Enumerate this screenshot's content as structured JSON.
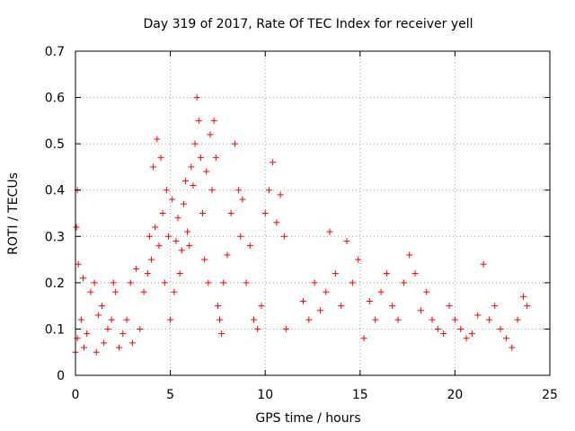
{
  "chart_data": {
    "type": "scatter",
    "title": "Day 319 of 2017, Rate Of TEC Index for receiver yell",
    "xlabel": "GPS time / hours",
    "ylabel": "ROTI / TECUs",
    "xlim": [
      0,
      25
    ],
    "ylim": [
      0,
      0.7
    ],
    "x_ticks": [
      0,
      5,
      10,
      15,
      20,
      25
    ],
    "y_ticks": [
      0,
      0.1,
      0.2,
      0.3,
      0.4,
      0.5,
      0.6,
      0.7
    ],
    "grid": true,
    "marker": "+",
    "marker_color": "#ff0000",
    "series": [
      {
        "x": [
          0.0,
          0.05,
          0.1,
          0.1,
          0.15,
          0.3,
          0.4,
          0.45,
          0.6,
          0.8,
          1.0,
          1.1,
          1.2,
          1.4,
          1.5,
          1.7,
          1.9,
          2.0,
          2.1,
          2.3,
          2.5,
          2.7,
          2.9,
          3.0,
          3.2,
          3.4,
          3.6,
          3.8,
          3.9,
          4.0,
          4.1,
          4.2,
          4.3,
          4.4,
          4.5,
          4.6,
          4.7,
          4.8,
          4.9,
          5.0,
          5.1,
          5.2,
          5.3,
          5.4,
          5.5,
          5.6,
          5.7,
          5.8,
          5.9,
          6.0,
          6.1,
          6.2,
          6.3,
          6.4,
          6.5,
          6.6,
          6.7,
          6.8,
          6.9,
          7.0,
          7.1,
          7.2,
          7.3,
          7.4,
          7.5,
          7.6,
          7.7,
          7.8,
          8.0,
          8.2,
          8.4,
          8.6,
          8.7,
          8.8,
          9.0,
          9.2,
          9.4,
          9.6,
          9.8,
          10.0,
          10.2,
          10.4,
          10.6,
          10.8,
          11.0,
          11.1,
          12.0,
          12.3,
          12.6,
          12.9,
          13.2,
          13.4,
          13.7,
          14.0,
          14.3,
          14.6,
          14.9,
          15.2,
          15.5,
          15.8,
          16.1,
          16.4,
          16.7,
          17.0,
          17.3,
          17.6,
          17.9,
          18.2,
          18.5,
          18.8,
          19.1,
          19.4,
          19.7,
          20.0,
          20.3,
          20.6,
          20.9,
          21.2,
          21.5,
          21.8,
          22.1,
          22.4,
          22.7,
          23.0,
          23.3,
          23.6,
          23.8
        ],
        "y": [
          0.05,
          0.32,
          0.4,
          0.08,
          0.24,
          0.12,
          0.21,
          0.06,
          0.09,
          0.18,
          0.2,
          0.05,
          0.13,
          0.15,
          0.07,
          0.1,
          0.12,
          0.2,
          0.18,
          0.06,
          0.09,
          0.12,
          0.2,
          0.07,
          0.23,
          0.1,
          0.18,
          0.22,
          0.3,
          0.25,
          0.45,
          0.32,
          0.51,
          0.28,
          0.47,
          0.35,
          0.2,
          0.4,
          0.3,
          0.12,
          0.38,
          0.18,
          0.29,
          0.34,
          0.22,
          0.27,
          0.37,
          0.42,
          0.31,
          0.28,
          0.45,
          0.41,
          0.5,
          0.6,
          0.55,
          0.47,
          0.35,
          0.25,
          0.44,
          0.2,
          0.52,
          0.4,
          0.55,
          0.47,
          0.15,
          0.12,
          0.09,
          0.2,
          0.26,
          0.35,
          0.5,
          0.4,
          0.3,
          0.38,
          0.2,
          0.28,
          0.12,
          0.1,
          0.15,
          0.35,
          0.4,
          0.46,
          0.33,
          0.39,
          0.3,
          0.1,
          0.16,
          0.12,
          0.2,
          0.14,
          0.18,
          0.31,
          0.22,
          0.15,
          0.29,
          0.2,
          0.25,
          0.08,
          0.16,
          0.12,
          0.18,
          0.22,
          0.15,
          0.12,
          0.2,
          0.26,
          0.22,
          0.14,
          0.18,
          0.12,
          0.1,
          0.09,
          0.15,
          0.12,
          0.1,
          0.08,
          0.09,
          0.13,
          0.24,
          0.12,
          0.15,
          0.1,
          0.08,
          0.06,
          0.12,
          0.17,
          0.15
        ]
      }
    ]
  }
}
